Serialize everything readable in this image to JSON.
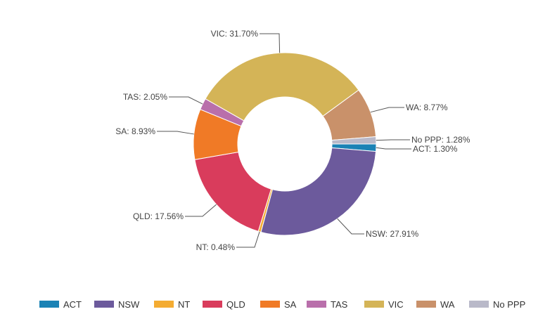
{
  "chart_data": {
    "type": "pie",
    "donut": true,
    "title": "",
    "slices": [
      {
        "name": "ACT",
        "value": 1.3,
        "label": "ACT: 1.30%",
        "color": "#1a82b5"
      },
      {
        "name": "NSW",
        "value": 27.91,
        "label": "NSW: 27.91%",
        "color": "#6c5a9c"
      },
      {
        "name": "NT",
        "value": 0.48,
        "label": "NT: 0.48%",
        "color": "#f4ac32"
      },
      {
        "name": "QLD",
        "value": 17.56,
        "label": "QLD: 17.56%",
        "color": "#d93c5c"
      },
      {
        "name": "SA",
        "value": 8.93,
        "label": "SA: 8.93%",
        "color": "#f07a26"
      },
      {
        "name": "TAS",
        "value": 2.05,
        "label": "TAS: 2.05%",
        "color": "#b96fab"
      },
      {
        "name": "VIC",
        "value": 31.7,
        "label": "VIC: 31.70%",
        "color": "#d4b457"
      },
      {
        "name": "WA",
        "value": 8.77,
        "label": "WA: 8.77%",
        "color": "#c9916a"
      },
      {
        "name": "No PPP",
        "value": 1.28,
        "label": "No PPP: 1.28%",
        "color": "#b9b9c9"
      }
    ],
    "legend_position": "bottom"
  }
}
